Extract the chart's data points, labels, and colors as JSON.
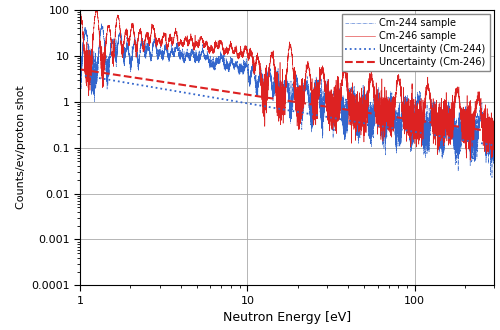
{
  "title": "",
  "xlabel": "Neutron Energy [eV]",
  "ylabel": "Counts/ev/proton shot",
  "xlim": [
    1,
    300
  ],
  "ylim": [
    0.0001,
    100
  ],
  "legend_entries": [
    "Cm-244 sample",
    "Cm-246 sample",
    "Uncertainty (Cm-244)",
    "Uncertainty (Cm-246)"
  ],
  "cm244_color": "#3366CC",
  "cm246_color": "#DD2222",
  "unc_244_color": "#3366CC",
  "unc_246_color": "#DD2222",
  "background_color": "#ffffff",
  "grid_color": "#aaaaaa",
  "unc_244_A": 0.09,
  "unc_244_b": 0.62,
  "unc_246_A": 0.07,
  "unc_246_b": 0.55,
  "base_244_A": 0.09,
  "base_244_b": 0.62,
  "base_246_A": 0.07,
  "base_246_b": 0.55
}
